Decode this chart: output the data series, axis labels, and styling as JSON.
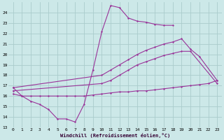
{
  "xlabel": "Windchill (Refroidissement éolien,°C)",
  "background_color": "#cce8e8",
  "grid_color": "#aacccc",
  "line_color": "#993399",
  "xlim": [
    -0.5,
    23.5
  ],
  "ylim": [
    13,
    25
  ],
  "xticks": [
    0,
    1,
    2,
    3,
    4,
    5,
    6,
    7,
    8,
    9,
    10,
    11,
    12,
    13,
    14,
    15,
    16,
    17,
    18,
    19,
    20,
    21,
    22,
    23
  ],
  "yticks": [
    13,
    14,
    15,
    16,
    17,
    18,
    19,
    20,
    21,
    22,
    23,
    24
  ],
  "line1_x": [
    0,
    1,
    2,
    3,
    4,
    5,
    6,
    7,
    8,
    9,
    10,
    11,
    12,
    13,
    14,
    15,
    16,
    17,
    18
  ],
  "line1_y": [
    16.8,
    16.0,
    15.5,
    15.2,
    14.7,
    13.8,
    13.8,
    13.5,
    15.2,
    18.5,
    22.2,
    24.7,
    24.5,
    23.5,
    23.2,
    23.1,
    22.9,
    22.8,
    22.8
  ],
  "line2_x": [
    0,
    10,
    11,
    12,
    13,
    14,
    15,
    16,
    17,
    18,
    19,
    20,
    21,
    23
  ],
  "line2_y": [
    16.8,
    18.0,
    18.5,
    19.0,
    19.5,
    20.0,
    20.4,
    20.7,
    21.0,
    21.2,
    21.5,
    20.5,
    19.8,
    17.5
  ],
  "line3_x": [
    0,
    10,
    11,
    12,
    13,
    14,
    15,
    16,
    17,
    18,
    19,
    20,
    23
  ],
  "line3_y": [
    16.5,
    17.2,
    17.5,
    18.0,
    18.5,
    19.0,
    19.3,
    19.6,
    19.9,
    20.1,
    20.3,
    20.3,
    17.2
  ],
  "line4_x": [
    0,
    1,
    2,
    3,
    4,
    5,
    6,
    7,
    8,
    9,
    10,
    11,
    12,
    13,
    14,
    15,
    16,
    17,
    18,
    19,
    20,
    21,
    22,
    23
  ],
  "line4_y": [
    16.2,
    16.0,
    16.0,
    16.0,
    16.0,
    16.0,
    16.0,
    16.0,
    16.0,
    16.1,
    16.2,
    16.3,
    16.4,
    16.4,
    16.5,
    16.5,
    16.6,
    16.7,
    16.8,
    16.9,
    17.0,
    17.1,
    17.2,
    17.5
  ]
}
